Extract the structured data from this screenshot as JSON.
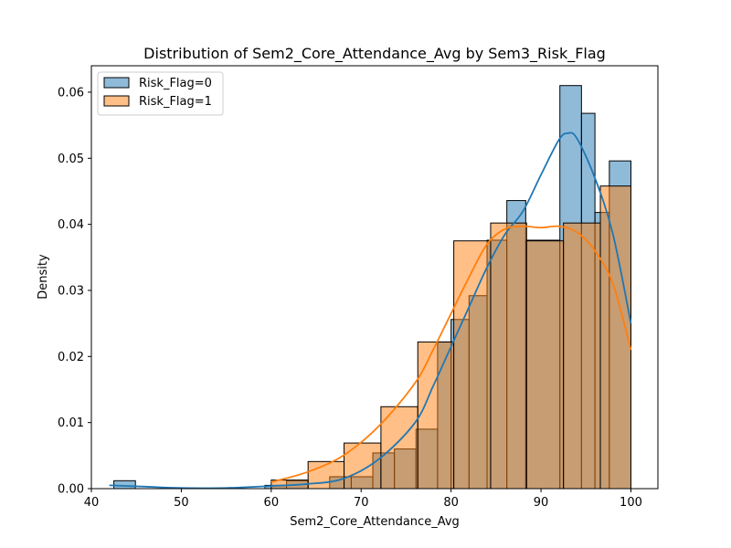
{
  "chart_data": {
    "type": "histogram",
    "title": "Distribution of Sem2_Core_Attendance_Avg by Sem3_Risk_Flag",
    "xlabel": "Sem2_Core_Attendance_Avg",
    "ylabel": "Density",
    "xlim": [
      40,
      103
    ],
    "ylim": [
      0,
      0.064
    ],
    "x_ticks": [
      40,
      50,
      60,
      70,
      80,
      90,
      100
    ],
    "y_ticks": [
      0.0,
      0.01,
      0.02,
      0.03,
      0.04,
      0.05,
      0.06
    ],
    "y_tick_labels": [
      "0.00",
      "0.01",
      "0.02",
      "0.03",
      "0.04",
      "0.05",
      "0.06"
    ],
    "legend": {
      "position": "upper-left",
      "entries": [
        "Risk_Flag=0",
        "Risk_Flag=1"
      ]
    },
    "series": [
      {
        "name": "Risk_Flag=0",
        "color": "#1f77b4",
        "bins": [
          {
            "x0": 42.5,
            "x1": 44.9,
            "value": 0.0012
          },
          {
            "x0": 59.3,
            "x1": 61.7,
            "value": 0.0005
          },
          {
            "x0": 61.7,
            "x1": 64.1,
            "value": 0.0012
          },
          {
            "x0": 66.5,
            "x1": 68.9,
            "value": 0.0018
          },
          {
            "x0": 68.9,
            "x1": 71.3,
            "value": 0.0018
          },
          {
            "x0": 71.3,
            "x1": 73.7,
            "value": 0.0054
          },
          {
            "x0": 73.7,
            "x1": 76.1,
            "value": 0.006
          },
          {
            "x0": 76.1,
            "x1": 78.5,
            "value": 0.009
          },
          {
            "x0": 78.5,
            "x1": 80.0,
            "value": 0.0222
          },
          {
            "x0": 80.0,
            "x1": 82.0,
            "value": 0.0256
          },
          {
            "x0": 82.0,
            "x1": 84.0,
            "value": 0.0292
          },
          {
            "x0": 84.0,
            "x1": 86.2,
            "value": 0.0376
          },
          {
            "x0": 86.2,
            "x1": 88.3,
            "value": 0.0436
          },
          {
            "x0": 88.3,
            "x1": 92.1,
            "value": 0.0376
          },
          {
            "x0": 92.1,
            "x1": 94.5,
            "value": 0.061
          },
          {
            "x0": 94.5,
            "x1": 96.0,
            "value": 0.0568
          },
          {
            "x0": 96.0,
            "x1": 97.6,
            "value": 0.0418
          },
          {
            "x0": 97.6,
            "x1": 100.0,
            "value": 0.0496
          }
        ],
        "kde": {
          "x": [
            42,
            46,
            50,
            55,
            60,
            64,
            68,
            72,
            76,
            78,
            80,
            82,
            84,
            86,
            88,
            90,
            92,
            93,
            94,
            96,
            98,
            100
          ],
          "y": [
            0.0005,
            0.0003,
            0.0001,
            0.0001,
            0.0004,
            0.0007,
            0.0015,
            0.0045,
            0.01,
            0.0155,
            0.0215,
            0.0275,
            0.0335,
            0.0385,
            0.042,
            0.0475,
            0.0528,
            0.0538,
            0.053,
            0.047,
            0.0385,
            0.025
          ]
        }
      },
      {
        "name": "Risk_Flag=1",
        "color": "#ff7f0e",
        "bins": [
          {
            "x0": 60.0,
            "x1": 64.1,
            "value": 0.0013
          },
          {
            "x0": 64.1,
            "x1": 68.1,
            "value": 0.0041
          },
          {
            "x0": 68.1,
            "x1": 72.2,
            "value": 0.0069
          },
          {
            "x0": 72.2,
            "x1": 76.3,
            "value": 0.0124
          },
          {
            "x0": 76.3,
            "x1": 80.3,
            "value": 0.0222
          },
          {
            "x0": 80.3,
            "x1": 84.4,
            "value": 0.0375
          },
          {
            "x0": 84.4,
            "x1": 88.4,
            "value": 0.0402
          },
          {
            "x0": 88.4,
            "x1": 92.5,
            "value": 0.0375
          },
          {
            "x0": 92.5,
            "x1": 96.6,
            "value": 0.0402
          },
          {
            "x0": 96.6,
            "x1": 100.0,
            "value": 0.0458
          }
        ],
        "kde": {
          "x": [
            60,
            64,
            68,
            72,
            76,
            78,
            80,
            82,
            84,
            86,
            88,
            90,
            92,
            94,
            96,
            98,
            100
          ],
          "y": [
            0.001,
            0.0025,
            0.005,
            0.0095,
            0.016,
            0.021,
            0.0265,
            0.032,
            0.037,
            0.0393,
            0.0397,
            0.0395,
            0.0397,
            0.0388,
            0.036,
            0.031,
            0.021
          ]
        }
      }
    ]
  }
}
